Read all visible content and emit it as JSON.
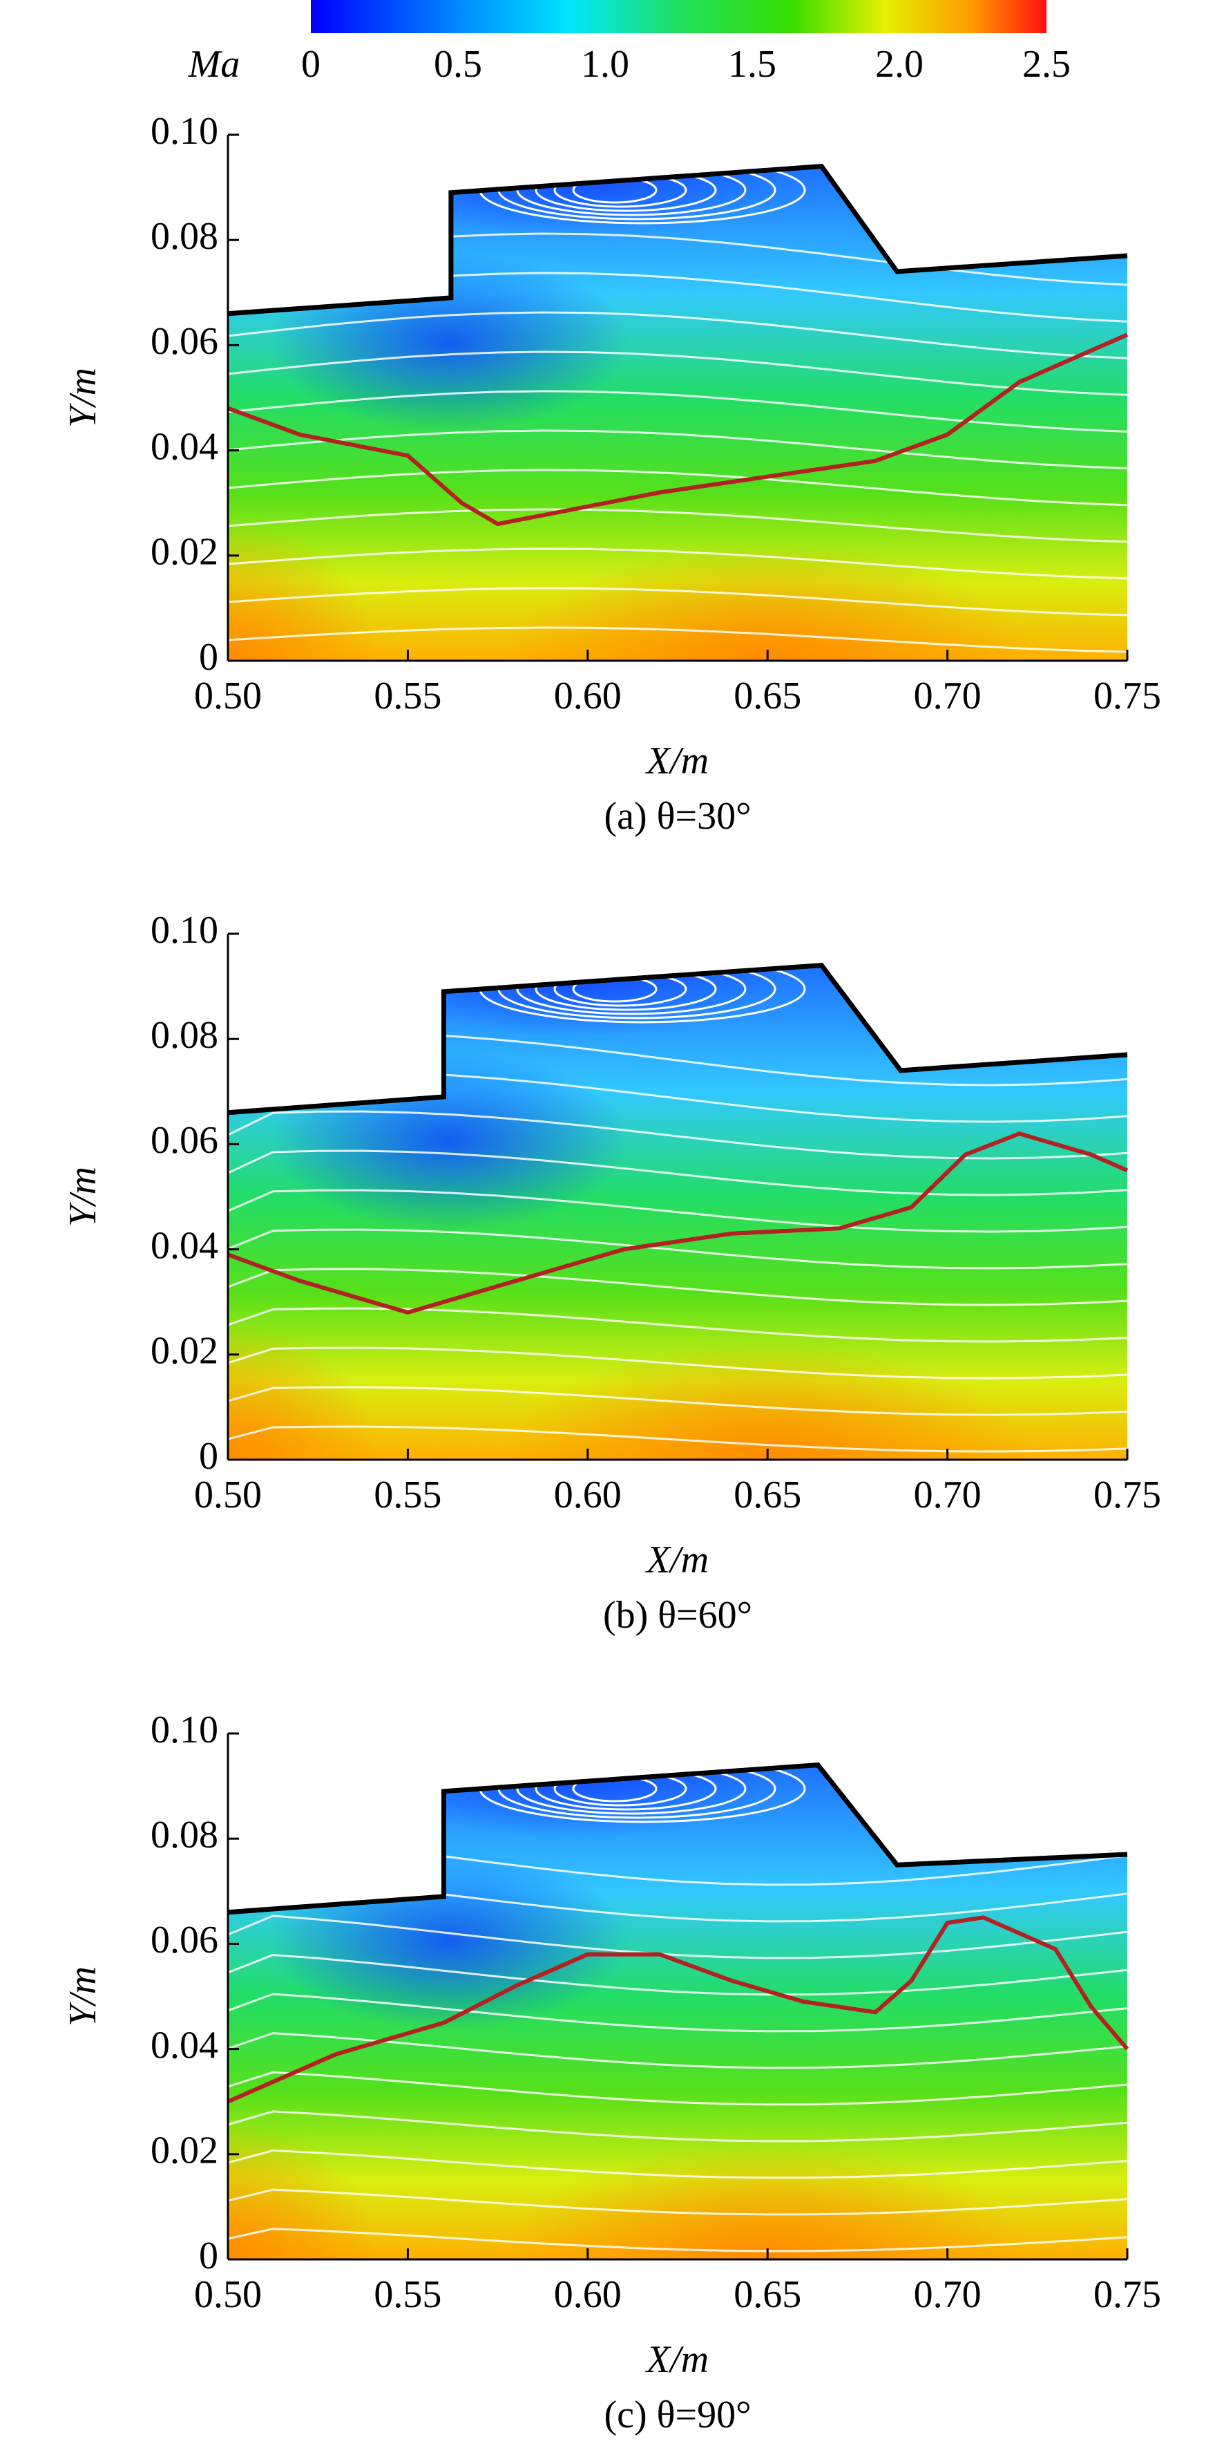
{
  "colorbar": {
    "label": "Ma",
    "clim": [
      0,
      2.5
    ],
    "ticks": [
      0,
      0.5,
      {
        "value": 1,
        "label": "1.0"
      },
      1.5,
      {
        "value": 2,
        "label": "2.0"
      },
      2.5
    ]
  },
  "chart_data": [
    {
      "type": "contour",
      "title": "(a) θ=30°",
      "xlabel": "X/m",
      "ylabel": "Y/m",
      "xlim": [
        0.5,
        0.75
      ],
      "ylim": [
        0,
        0.1
      ],
      "xticks": [
        {
          "value": 0.5,
          "label": "0.50"
        },
        0.55,
        {
          "value": 0.6,
          "label": "0.60"
        },
        0.65,
        {
          "value": 0.7,
          "label": "0.70"
        },
        0.75
      ],
      "yticks": [
        0,
        0.02,
        0.04,
        0.06,
        0.08,
        {
          "value": 0.1,
          "label": "0.10"
        }
      ],
      "wall": {
        "color": "#000000",
        "x": [
          0.5,
          0.562,
          0.562,
          0.665,
          0.686,
          0.75
        ],
        "y": [
          0.066,
          0.069,
          0.089,
          0.094,
          0.074,
          0.077
        ]
      },
      "sonic_line": {
        "color": "#b22222",
        "x": [
          0.5,
          0.52,
          0.55,
          0.565,
          0.575,
          0.59,
          0.62,
          0.65,
          0.68,
          0.7,
          0.72,
          0.75
        ],
        "y": [
          0.048,
          0.043,
          0.039,
          0.03,
          0.026,
          0.028,
          0.032,
          0.035,
          0.038,
          0.043,
          0.053,
          0.062
        ]
      }
    },
    {
      "type": "contour",
      "title": "(b) θ=60°",
      "xlabel": "X/m",
      "ylabel": "Y/m",
      "xlim": [
        0.5,
        0.75
      ],
      "ylim": [
        0,
        0.1
      ],
      "xticks": [
        {
          "value": 0.5,
          "label": "0.50"
        },
        0.55,
        {
          "value": 0.6,
          "label": "0.60"
        },
        0.65,
        {
          "value": 0.7,
          "label": "0.70"
        },
        0.75
      ],
      "yticks": [
        0,
        0.02,
        0.04,
        0.06,
        0.08,
        {
          "value": 0.1,
          "label": "0.10"
        }
      ],
      "wall": {
        "color": "#000000",
        "x": [
          0.5,
          0.56,
          0.56,
          0.665,
          0.687,
          0.75
        ],
        "y": [
          0.066,
          0.069,
          0.089,
          0.094,
          0.074,
          0.077
        ]
      },
      "sonic_line": {
        "color": "#b22222",
        "x": [
          0.5,
          0.52,
          0.55,
          0.58,
          0.61,
          0.64,
          0.67,
          0.69,
          0.705,
          0.72,
          0.74,
          0.75
        ],
        "y": [
          0.039,
          0.034,
          0.028,
          0.034,
          0.04,
          0.043,
          0.044,
          0.048,
          0.058,
          0.062,
          0.058,
          0.055
        ]
      }
    },
    {
      "type": "contour",
      "title": "(c) θ=90°",
      "xlabel": "X/m",
      "ylabel": "Y/m",
      "xlim": [
        0.5,
        0.75
      ],
      "ylim": [
        0,
        0.1
      ],
      "xticks": [
        {
          "value": 0.5,
          "label": "0.50"
        },
        0.55,
        {
          "value": 0.6,
          "label": "0.60"
        },
        0.65,
        {
          "value": 0.7,
          "label": "0.70"
        },
        0.75
      ],
      "yticks": [
        0,
        0.02,
        0.04,
        0.06,
        0.08,
        {
          "value": 0.1,
          "label": "0.10"
        }
      ],
      "wall": {
        "color": "#000000",
        "x": [
          0.5,
          0.56,
          0.56,
          0.664,
          0.686,
          0.75
        ],
        "y": [
          0.066,
          0.069,
          0.089,
          0.094,
          0.075,
          0.077
        ]
      },
      "sonic_line": {
        "color": "#b22222",
        "x": [
          0.5,
          0.53,
          0.56,
          0.58,
          0.6,
          0.62,
          0.64,
          0.66,
          0.68,
          0.69,
          0.7,
          0.71,
          0.73,
          0.74,
          0.75
        ],
        "y": [
          0.03,
          0.039,
          0.045,
          0.052,
          0.058,
          0.058,
          0.053,
          0.049,
          0.047,
          0.053,
          0.064,
          0.065,
          0.059,
          0.048,
          0.04
        ]
      }
    }
  ]
}
